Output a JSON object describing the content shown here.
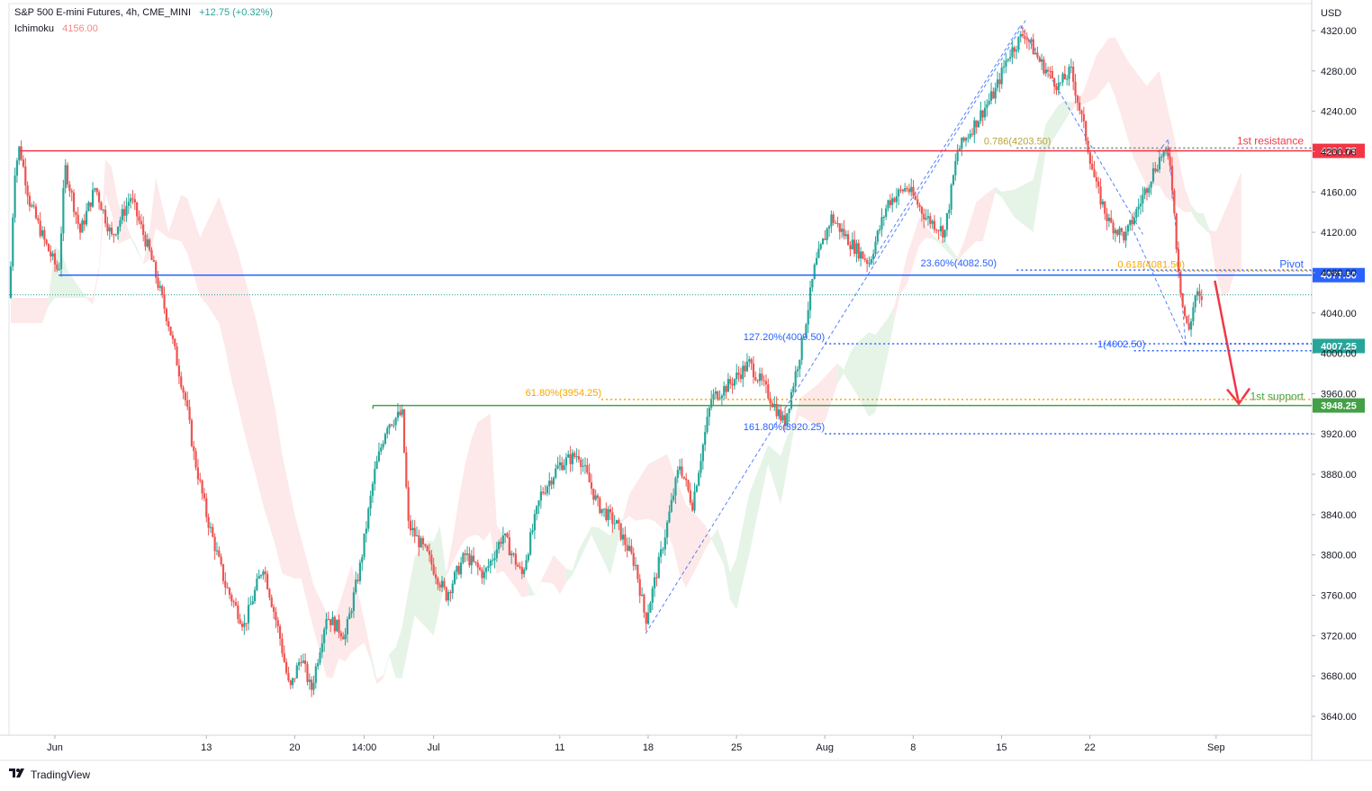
{
  "header": {
    "symbol": "S&P 500 E-mini Futures, 4h, CME_MINI",
    "change": "+12.75 (+0.32%)",
    "indicator": "Ichimoku",
    "indicator_value": "4156.00"
  },
  "brand": {
    "logo_icon": "tradingview-logo-icon",
    "name": "TradingView"
  },
  "colors": {
    "up": "#26a69a",
    "down": "#ef5350",
    "resistance": "#f23645",
    "pivot": "#2962ff",
    "support": "#43a047",
    "fib": "#f7a600",
    "cloud_green": "#e3f3e6",
    "cloud_red": "#fde7e7"
  },
  "chart_data": {
    "type": "candlestick",
    "title": "S&P 500 E-mini Futures, 4h, CME_MINI",
    "currency": "USD",
    "ylim": [
      3620,
      4335
    ],
    "y_ticks": [
      3640,
      3680,
      3720,
      3760,
      3800,
      3840,
      3880,
      3920,
      3960,
      4000,
      4040,
      4080,
      4120,
      4160,
      4200,
      4240,
      4280,
      4320
    ],
    "x_ticks": [
      {
        "label": "Jun",
        "day": 0
      },
      {
        "label": "13",
        "day": 12
      },
      {
        "label": "20",
        "day": 19
      },
      {
        "label": "14:00",
        "day": 24.5
      },
      {
        "label": "Jul",
        "day": 30
      },
      {
        "label": "11",
        "day": 40
      },
      {
        "label": "18",
        "day": 47
      },
      {
        "label": "25",
        "day": 54
      },
      {
        "label": "Aug",
        "day": 61
      },
      {
        "label": "8",
        "day": 68
      },
      {
        "label": "15",
        "day": 75
      },
      {
        "label": "22",
        "day": 82
      },
      {
        "label": "Sep",
        "day": 92
      }
    ],
    "price_path": [
      {
        "day": -3.6,
        "price": 4055
      },
      {
        "day": -3.2,
        "price": 4180
      },
      {
        "day": -2.8,
        "price": 4205
      },
      {
        "day": -2.0,
        "price": 4150
      },
      {
        "day": -0.8,
        "price": 4110
      },
      {
        "day": 0.3,
        "price": 4080
      },
      {
        "day": 0.8,
        "price": 4185
      },
      {
        "day": 2.0,
        "price": 4120
      },
      {
        "day": 3.2,
        "price": 4165
      },
      {
        "day": 4.5,
        "price": 4115
      },
      {
        "day": 6.0,
        "price": 4155
      },
      {
        "day": 7.5,
        "price": 4100
      },
      {
        "day": 9.0,
        "price": 4030
      },
      {
        "day": 10.4,
        "price": 3950
      },
      {
        "day": 11.0,
        "price": 3900
      },
      {
        "day": 12.0,
        "price": 3840
      },
      {
        "day": 13.5,
        "price": 3770
      },
      {
        "day": 15.0,
        "price": 3730
      },
      {
        "day": 16.5,
        "price": 3790
      },
      {
        "day": 17.8,
        "price": 3720
      },
      {
        "day": 18.6,
        "price": 3665
      },
      {
        "day": 19.5,
        "price": 3700
      },
      {
        "day": 20.3,
        "price": 3665
      },
      {
        "day": 21.5,
        "price": 3740
      },
      {
        "day": 23.0,
        "price": 3720
      },
      {
        "day": 24.2,
        "price": 3790
      },
      {
        "day": 25.3,
        "price": 3880
      },
      {
        "day": 26.3,
        "price": 3930
      },
      {
        "day": 27.5,
        "price": 3940
      },
      {
        "day": 28.0,
        "price": 3830
      },
      {
        "day": 29.5,
        "price": 3800
      },
      {
        "day": 31.0,
        "price": 3760
      },
      {
        "day": 32.5,
        "price": 3800
      },
      {
        "day": 34.0,
        "price": 3780
      },
      {
        "day": 35.5,
        "price": 3820
      },
      {
        "day": 37.0,
        "price": 3780
      },
      {
        "day": 38.5,
        "price": 3860
      },
      {
        "day": 40.0,
        "price": 3890
      },
      {
        "day": 41.5,
        "price": 3900
      },
      {
        "day": 43.0,
        "price": 3850
      },
      {
        "day": 44.5,
        "price": 3830
      },
      {
        "day": 46.0,
        "price": 3790
      },
      {
        "day": 46.8,
        "price": 3735
      },
      {
        "day": 48.0,
        "price": 3800
      },
      {
        "day": 49.5,
        "price": 3890
      },
      {
        "day": 50.5,
        "price": 3850
      },
      {
        "day": 52.0,
        "price": 3955
      },
      {
        "day": 53.5,
        "price": 3970
      },
      {
        "day": 55.0,
        "price": 3990
      },
      {
        "day": 56.5,
        "price": 3960
      },
      {
        "day": 57.8,
        "price": 3930
      },
      {
        "day": 59.2,
        "price": 4010
      },
      {
        "day": 60.2,
        "price": 4085
      },
      {
        "day": 61.5,
        "price": 4135
      },
      {
        "day": 63.0,
        "price": 4110
      },
      {
        "day": 64.5,
        "price": 4090
      },
      {
        "day": 66.0,
        "price": 4150
      },
      {
        "day": 67.5,
        "price": 4165
      },
      {
        "day": 69.0,
        "price": 4135
      },
      {
        "day": 70.5,
        "price": 4120
      },
      {
        "day": 71.5,
        "price": 4200
      },
      {
        "day": 73.0,
        "price": 4230
      },
      {
        "day": 74.5,
        "price": 4260
      },
      {
        "day": 75.5,
        "price": 4295
      },
      {
        "day": 76.8,
        "price": 4318
      },
      {
        "day": 78.0,
        "price": 4290
      },
      {
        "day": 79.5,
        "price": 4265
      },
      {
        "day": 80.5,
        "price": 4280
      },
      {
        "day": 81.5,
        "price": 4225
      },
      {
        "day": 82.5,
        "price": 4165
      },
      {
        "day": 83.5,
        "price": 4130
      },
      {
        "day": 84.8,
        "price": 4115
      },
      {
        "day": 86.0,
        "price": 4150
      },
      {
        "day": 87.0,
        "price": 4180
      },
      {
        "day": 87.8,
        "price": 4200
      },
      {
        "day": 88.4,
        "price": 4188
      },
      {
        "day": 88.9,
        "price": 4100
      },
      {
        "day": 89.3,
        "price": 4050
      },
      {
        "day": 89.8,
        "price": 4020
      },
      {
        "day": 90.4,
        "price": 4060
      },
      {
        "day": 91.0,
        "price": 4045
      }
    ],
    "levels": [
      {
        "name": "resistance",
        "label": "1st resistance",
        "price": 4200.75,
        "price_label": "4200.75"
      },
      {
        "name": "pivot",
        "label": "Pivot",
        "price": 4077.5,
        "price_label": "4077.50"
      },
      {
        "name": "support",
        "label": "1st support",
        "price": 3948.25,
        "price_label": "3948.25"
      },
      {
        "name": "last-low",
        "price": 4007.25,
        "price_label": "4007.25"
      }
    ],
    "fib_annotations": [
      {
        "text": "0.786(4203.50)",
        "price": 4203.5
      },
      {
        "text": "23.60%(4082.50)",
        "price": 4082.5
      },
      {
        "text": "0.618(4081.50)",
        "price": 4081.5
      },
      {
        "text": "127.20%(4009.50)",
        "price": 4009.5
      },
      {
        "text": "1(4002.50)",
        "price": 4002.5
      },
      {
        "text": "61.80%(3954.25)",
        "price": 3954.25
      },
      {
        "text": "161.80%(3920.25)",
        "price": 3920.25
      }
    ]
  }
}
